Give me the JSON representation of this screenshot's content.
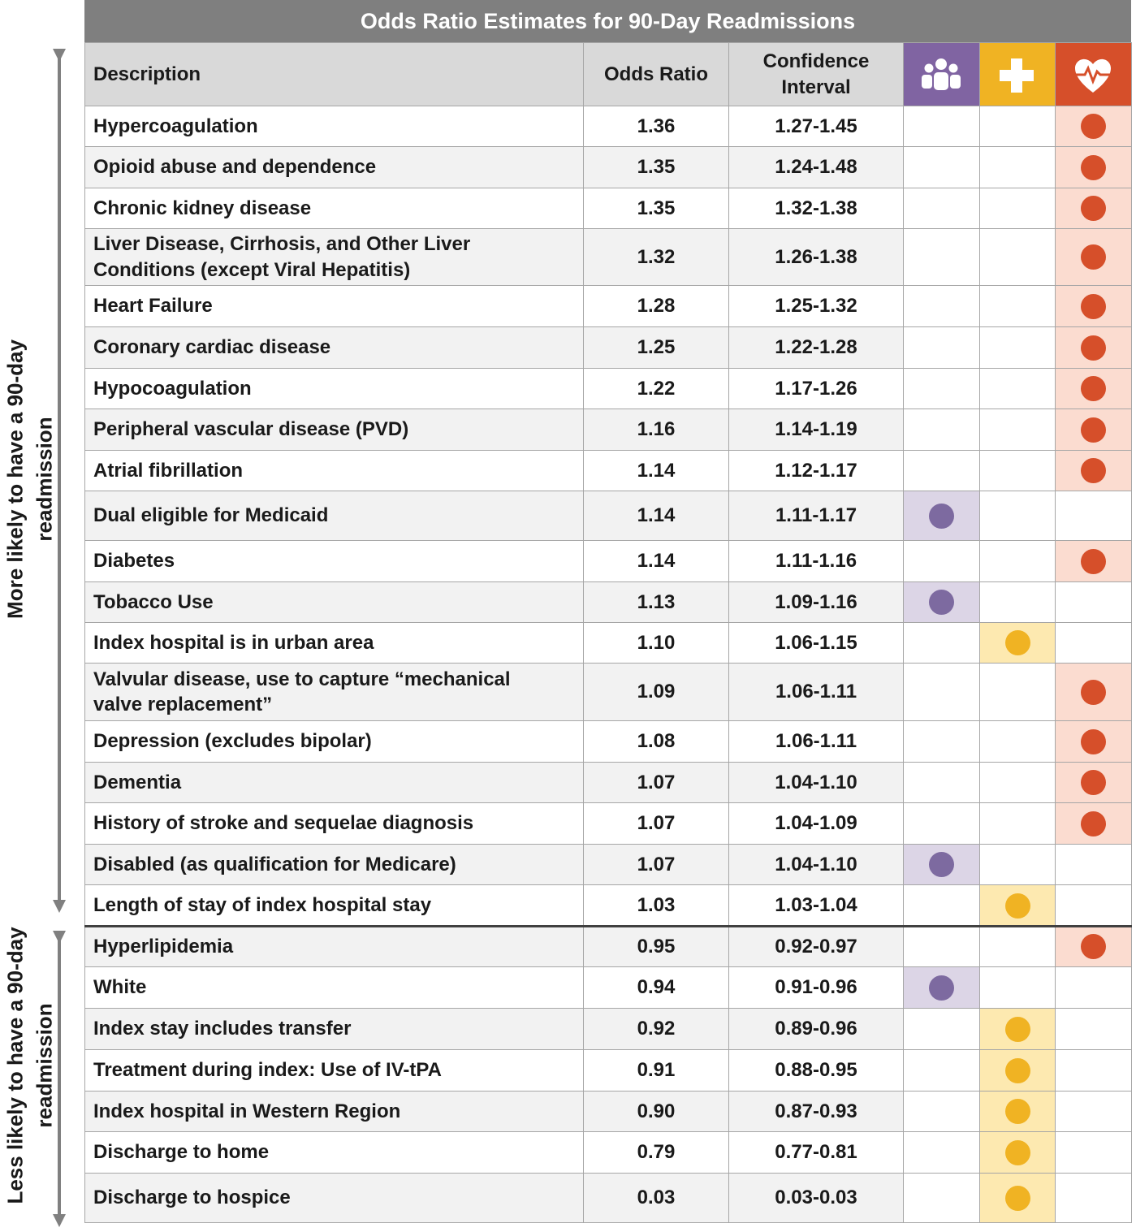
{
  "title": "Odds Ratio Estimates for 90-Day Readmissions",
  "side_labels": [
    "More likely to have a 90-day readmission",
    "Less likely to have a 90-day readmission"
  ],
  "columns": [
    "Description",
    "Odds Ratio",
    "Confidence Interval"
  ],
  "group_colors": [
    {
      "header": "#8064a2",
      "dot": "#7d6aa0",
      "cell": "#dcd5e6"
    },
    {
      "header": "#f0b323",
      "dot": "#f0b323",
      "cell": "#fde9b0"
    },
    {
      "header": "#d64f2a",
      "dot": "#d64f2a",
      "cell": "#fbdcd0"
    }
  ],
  "rows": [
    {
      "description": "Hypercoagulation",
      "odds_ratio": "1.36",
      "confidence_interval": "1.27-1.45",
      "group": 2
    },
    {
      "description": "Opioid abuse and dependence",
      "odds_ratio": "1.35",
      "confidence_interval": "1.24-1.48",
      "group": 2
    },
    {
      "description": "Chronic kidney disease",
      "odds_ratio": "1.35",
      "confidence_interval": "1.32-1.38",
      "group": 2
    },
    {
      "description": "Liver Disease, Cirrhosis, and Other Liver Conditions (except Viral Hepatitis)",
      "odds_ratio": "1.32",
      "confidence_interval": "1.26-1.38",
      "group": 2
    },
    {
      "description": "Heart Failure",
      "odds_ratio": "1.28",
      "confidence_interval": "1.25-1.32",
      "group": 2
    },
    {
      "description": "Coronary cardiac disease",
      "odds_ratio": "1.25",
      "confidence_interval": "1.22-1.28",
      "group": 2
    },
    {
      "description": "Hypocoagulation",
      "odds_ratio": "1.22",
      "confidence_interval": "1.17-1.26",
      "group": 2
    },
    {
      "description": "Peripheral vascular disease (PVD)",
      "odds_ratio": "1.16",
      "confidence_interval": "1.14-1.19",
      "group": 2
    },
    {
      "description": "Atrial fibrillation",
      "odds_ratio": "1.14",
      "confidence_interval": "1.12-1.17",
      "group": 2
    },
    {
      "description": "Dual eligible for Medicaid",
      "odds_ratio": "1.14",
      "confidence_interval": "1.11-1.17",
      "group": 0
    },
    {
      "description": "Diabetes",
      "odds_ratio": "1.14",
      "confidence_interval": "1.11-1.16",
      "group": 2
    },
    {
      "description": "Tobacco Use",
      "odds_ratio": "1.13",
      "confidence_interval": "1.09-1.16",
      "group": 0
    },
    {
      "description": "Index hospital is in urban area",
      "odds_ratio": "1.10",
      "confidence_interval": "1.06-1.15",
      "group": 1
    },
    {
      "description": "Valvular disease, use to capture “mechanical valve replacement”",
      "odds_ratio": "1.09",
      "confidence_interval": "1.06-1.11",
      "group": 2
    },
    {
      "description": "Depression (excludes bipolar)",
      "odds_ratio": "1.08",
      "confidence_interval": "1.06-1.11",
      "group": 2
    },
    {
      "description": "Dementia",
      "odds_ratio": "1.07",
      "confidence_interval": "1.04-1.10",
      "group": 2
    },
    {
      "description": "History of stroke and sequelae diagnosis",
      "odds_ratio": "1.07",
      "confidence_interval": "1.04-1.09",
      "group": 2
    },
    {
      "description": "Disabled (as qualification for Medicare)",
      "odds_ratio": "1.07",
      "confidence_interval": "1.04-1.10",
      "group": 0
    },
    {
      "description": "Length of stay of index hospital stay",
      "odds_ratio": "1.03",
      "confidence_interval": "1.03-1.04",
      "group": 1
    },
    {
      "description": "Hyperlipidemia",
      "odds_ratio": "0.95",
      "confidence_interval": "0.92-0.97",
      "group": 2
    },
    {
      "description": "White",
      "odds_ratio": "0.94",
      "confidence_interval": "0.91-0.96",
      "group": 0
    },
    {
      "description": "Index stay includes transfer",
      "odds_ratio": "0.92",
      "confidence_interval": "0.89-0.96",
      "group": 1
    },
    {
      "description": "Treatment during index: Use of IV-tPA",
      "odds_ratio": "0.91",
      "confidence_interval": "0.88-0.95",
      "group": 1
    },
    {
      "description": "Index hospital in Western Region",
      "odds_ratio": "0.90",
      "confidence_interval": "0.87-0.93",
      "group": 1
    },
    {
      "description": "Discharge to home",
      "odds_ratio": "0.79",
      "confidence_interval": "0.77-0.81",
      "group": 1
    },
    {
      "description": "Discharge to hospice",
      "odds_ratio": "0.03",
      "confidence_interval": "0.03-0.03",
      "group": 1
    }
  ]
}
